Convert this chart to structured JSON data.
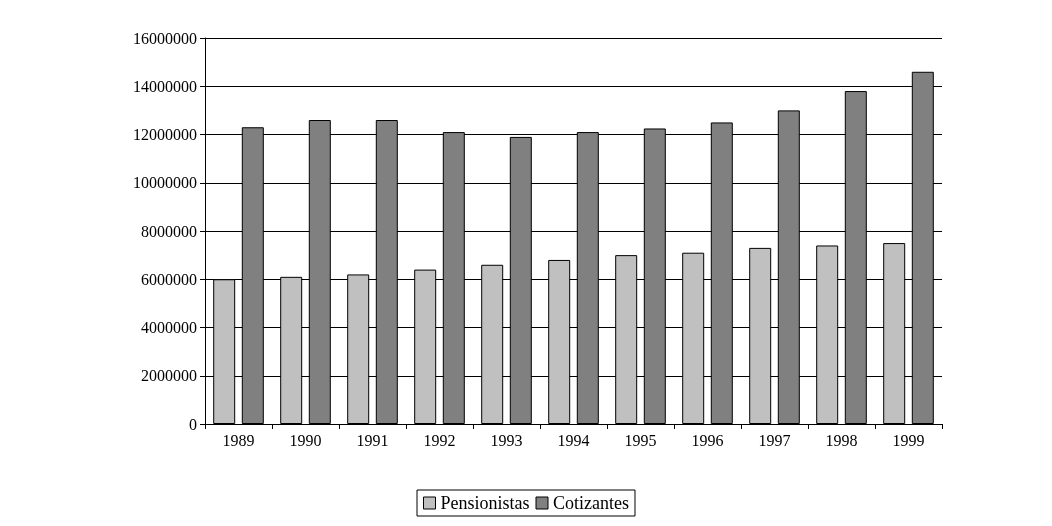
{
  "chart_data": {
    "type": "bar",
    "categories": [
      "1989",
      "1990",
      "1991",
      "1992",
      "1993",
      "1994",
      "1995",
      "1996",
      "1997",
      "1998",
      "1999"
    ],
    "series": [
      {
        "name": "Pensionistas",
        "color": "#c0c0c0",
        "values": [
          6000000,
          6100000,
          6200000,
          6400000,
          6600000,
          6800000,
          7000000,
          7100000,
          7300000,
          7400000,
          7500000
        ]
      },
      {
        "name": "Cotizantes",
        "color": "#808080",
        "values": [
          12300000,
          12600000,
          12600000,
          12100000,
          11900000,
          12100000,
          12250000,
          12500000,
          13000000,
          13800000,
          14600000
        ]
      }
    ],
    "ylim": [
      0,
      16000000
    ],
    "yticks": [
      0,
      2000000,
      4000000,
      6000000,
      8000000,
      10000000,
      12000000,
      14000000,
      16000000
    ],
    "grid": "y",
    "legend": "bottom"
  }
}
